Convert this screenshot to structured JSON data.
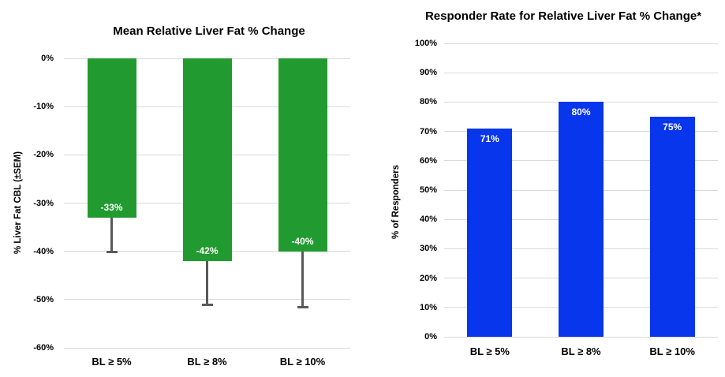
{
  "page": {
    "background_color": "#ffffff"
  },
  "chart_data": [
    {
      "type": "bar",
      "title": "Mean Relative Liver Fat % Change",
      "ylabel": "% Liver Fat CBL (±SEM)",
      "xlabel": "",
      "categories": [
        "BL ≥ 5%",
        "BL ≥ 8%",
        "BL ≥ 10%"
      ],
      "values": [
        -33,
        -42,
        -40
      ],
      "bar_labels": [
        "-33%",
        "-42%",
        "-40%"
      ],
      "error_bar_ends": [
        -40,
        -51,
        -51.5
      ],
      "ylim": [
        -60,
        0
      ],
      "tick_values": [
        0,
        -10,
        -20,
        -30,
        -40,
        -50,
        -60
      ],
      "tick_labels": [
        "0%",
        "-10%",
        "-20%",
        "-30%",
        "-40%",
        "-50%",
        "-60%"
      ],
      "grid": true,
      "legend_position": "none",
      "bar_color": "#219b30",
      "bar_label_color": "#ffffff",
      "bar_label_anchor": "bottom",
      "error_bar_color": "#595959",
      "gridline_color": "#d9d9d9",
      "text_color": "#000000"
    },
    {
      "type": "bar",
      "title": "Responder Rate for Relative Liver Fat % Change*",
      "ylabel": "% of Responders",
      "xlabel": "",
      "categories": [
        "BL ≥ 5%",
        "BL ≥ 8%",
        "BL ≥ 10%"
      ],
      "values": [
        71,
        80,
        75
      ],
      "bar_labels": [
        "71%",
        "80%",
        "75%"
      ],
      "ylim": [
        0,
        100
      ],
      "tick_values": [
        0,
        10,
        20,
        30,
        40,
        50,
        60,
        70,
        80,
        90,
        100
      ],
      "tick_labels": [
        "0%",
        "10%",
        "20%",
        "30%",
        "40%",
        "50%",
        "60%",
        "70%",
        "80%",
        "90%",
        "100%"
      ],
      "grid": true,
      "legend_position": "none",
      "bar_color": "#0836ec",
      "bar_label_color": "#ffffff",
      "bar_label_anchor": "top",
      "gridline_color": "#d9d9d9",
      "text_color": "#000000"
    }
  ]
}
